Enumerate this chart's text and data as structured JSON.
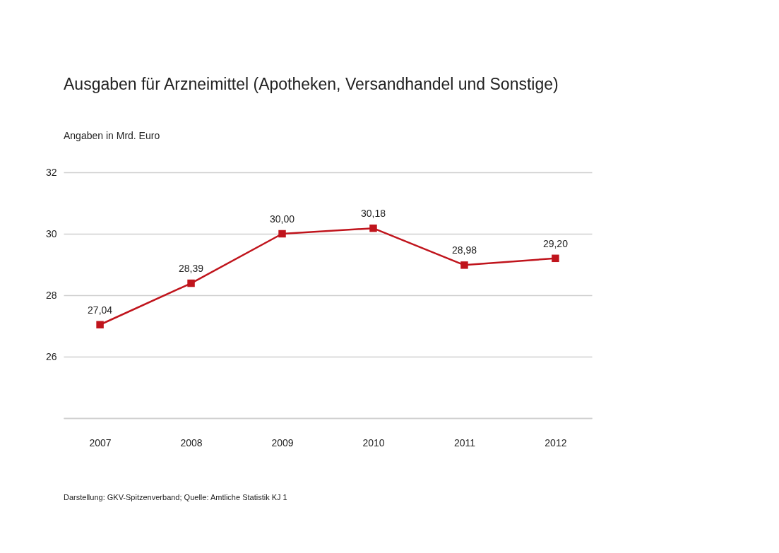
{
  "chart_data": {
    "type": "line",
    "title": "Ausgaben für Arzneimittel (Apotheken, Versandhandel und Sonstige)",
    "ylabel": "Angaben in Mrd. Euro",
    "categories": [
      "2007",
      "2008",
      "2009",
      "2010",
      "2011",
      "2012"
    ],
    "series": [
      {
        "color": "#c0141c",
        "values": [
          27.04,
          28.39,
          30.0,
          30.18,
          28.98,
          29.2
        ],
        "value_labels": [
          "27,04",
          "28,39",
          "30,00",
          "30,18",
          "28,98",
          "29,20"
        ]
      }
    ],
    "ylim": [
      24,
      32
    ],
    "yticks": [
      {
        "value": 24,
        "label": null
      },
      26,
      28,
      30,
      32
    ],
    "grid": "y",
    "marker": "square",
    "line_style": "solid",
    "legend": false,
    "annotations": [
      "Darstellung: GKV-Spitzenverband; Quelle: Amtliche Statistik KJ 1"
    ]
  }
}
